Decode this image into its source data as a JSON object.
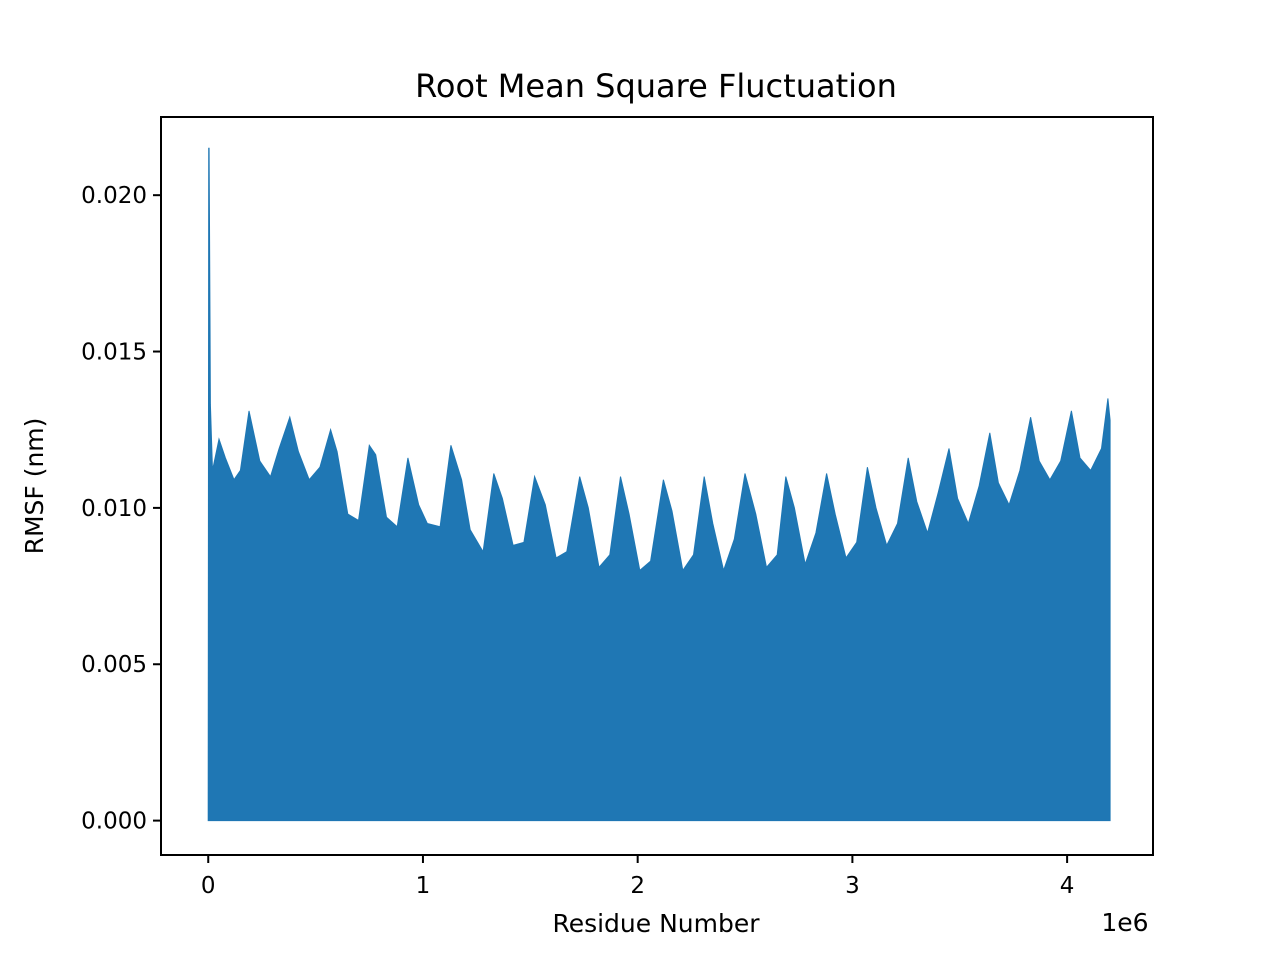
{
  "chart_data": {
    "type": "area",
    "title": "Root Mean Square Fluctuation",
    "xlabel": "Residue Number",
    "ylabel": "RMSF (nm)",
    "x_offset_label": "1e6",
    "xlim": [
      -0.22,
      4.4
    ],
    "ylim": [
      -0.0011,
      0.0225
    ],
    "x_ticks": [
      {
        "value": 0,
        "label": "0"
      },
      {
        "value": 1,
        "label": "1"
      },
      {
        "value": 2,
        "label": "2"
      },
      {
        "value": 3,
        "label": "3"
      },
      {
        "value": 4,
        "label": "4"
      }
    ],
    "y_ticks": [
      {
        "value": 0.0,
        "label": "0.000"
      },
      {
        "value": 0.005,
        "label": "0.005"
      },
      {
        "value": 0.01,
        "label": "0.010"
      },
      {
        "value": 0.015,
        "label": "0.015"
      },
      {
        "value": 0.02,
        "label": "0.020"
      }
    ],
    "grid": false,
    "series": [
      {
        "color": "#1f77b4",
        "x_units": "1e6",
        "baseline": 0.0,
        "upper_envelope": [
          [
            0.0,
            0.0006
          ],
          [
            0.002,
            0.0215
          ],
          [
            0.004,
            0.0215
          ],
          [
            0.008,
            0.016
          ],
          [
            0.01,
            0.0133
          ],
          [
            0.02,
            0.0112
          ],
          [
            0.05,
            0.0122
          ],
          [
            0.08,
            0.0116
          ],
          [
            0.12,
            0.0109
          ],
          [
            0.15,
            0.0112
          ],
          [
            0.19,
            0.0131
          ],
          [
            0.24,
            0.0115
          ],
          [
            0.29,
            0.011
          ],
          [
            0.33,
            0.0119
          ],
          [
            0.38,
            0.0129
          ],
          [
            0.42,
            0.0118
          ],
          [
            0.47,
            0.0109
          ],
          [
            0.52,
            0.0113
          ],
          [
            0.57,
            0.0125
          ],
          [
            0.6,
            0.0118
          ],
          [
            0.65,
            0.0098
          ],
          [
            0.7,
            0.0096
          ],
          [
            0.75,
            0.012
          ],
          [
            0.78,
            0.0117
          ],
          [
            0.83,
            0.0097
          ],
          [
            0.88,
            0.0094
          ],
          [
            0.93,
            0.0116
          ],
          [
            0.98,
            0.0101
          ],
          [
            1.02,
            0.0095
          ],
          [
            1.08,
            0.0094
          ],
          [
            1.13,
            0.012
          ],
          [
            1.18,
            0.0109
          ],
          [
            1.22,
            0.0093
          ],
          [
            1.28,
            0.0086
          ],
          [
            1.33,
            0.0111
          ],
          [
            1.37,
            0.0103
          ],
          [
            1.42,
            0.0088
          ],
          [
            1.47,
            0.0089
          ],
          [
            1.52,
            0.011
          ],
          [
            1.57,
            0.0101
          ],
          [
            1.62,
            0.0084
          ],
          [
            1.67,
            0.0086
          ],
          [
            1.73,
            0.011
          ],
          [
            1.77,
            0.01
          ],
          [
            1.82,
            0.0081
          ],
          [
            1.87,
            0.0085
          ],
          [
            1.92,
            0.011
          ],
          [
            1.96,
            0.0098
          ],
          [
            2.01,
            0.008
          ],
          [
            2.06,
            0.0083
          ],
          [
            2.12,
            0.0109
          ],
          [
            2.16,
            0.0099
          ],
          [
            2.21,
            0.008
          ],
          [
            2.26,
            0.0085
          ],
          [
            2.31,
            0.011
          ],
          [
            2.35,
            0.0095
          ],
          [
            2.4,
            0.008
          ],
          [
            2.45,
            0.009
          ],
          [
            2.5,
            0.0111
          ],
          [
            2.55,
            0.0098
          ],
          [
            2.6,
            0.0081
          ],
          [
            2.65,
            0.0085
          ],
          [
            2.69,
            0.011
          ],
          [
            2.73,
            0.01
          ],
          [
            2.78,
            0.0082
          ],
          [
            2.83,
            0.0092
          ],
          [
            2.88,
            0.0111
          ],
          [
            2.92,
            0.0098
          ],
          [
            2.97,
            0.0084
          ],
          [
            3.02,
            0.0089
          ],
          [
            3.07,
            0.0113
          ],
          [
            3.11,
            0.01
          ],
          [
            3.16,
            0.0088
          ],
          [
            3.21,
            0.0095
          ],
          [
            3.26,
            0.0116
          ],
          [
            3.3,
            0.0102
          ],
          [
            3.35,
            0.0092
          ],
          [
            3.4,
            0.0105
          ],
          [
            3.45,
            0.0119
          ],
          [
            3.49,
            0.0103
          ],
          [
            3.54,
            0.0095
          ],
          [
            3.59,
            0.0107
          ],
          [
            3.64,
            0.0124
          ],
          [
            3.68,
            0.0108
          ],
          [
            3.73,
            0.0101
          ],
          [
            3.78,
            0.0112
          ],
          [
            3.83,
            0.0129
          ],
          [
            3.87,
            0.0115
          ],
          [
            3.92,
            0.0109
          ],
          [
            3.97,
            0.0115
          ],
          [
            4.02,
            0.0131
          ],
          [
            4.06,
            0.0116
          ],
          [
            4.11,
            0.0112
          ],
          [
            4.16,
            0.0119
          ],
          [
            4.19,
            0.0135
          ],
          [
            4.2,
            0.0128
          ]
        ]
      }
    ]
  }
}
